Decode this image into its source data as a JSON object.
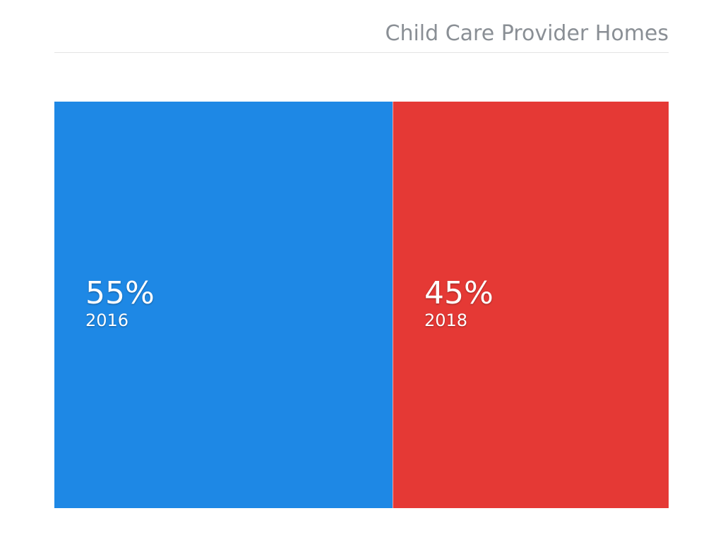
{
  "chart_data": {
    "type": "treemap",
    "title": "Child Care Provider Homes",
    "categories": [
      "2016",
      "2018"
    ],
    "values": [
      55,
      45
    ],
    "labels": [
      "55%",
      "45%"
    ],
    "colors": [
      "#1e88e5",
      "#e53935"
    ],
    "unit": "%"
  }
}
